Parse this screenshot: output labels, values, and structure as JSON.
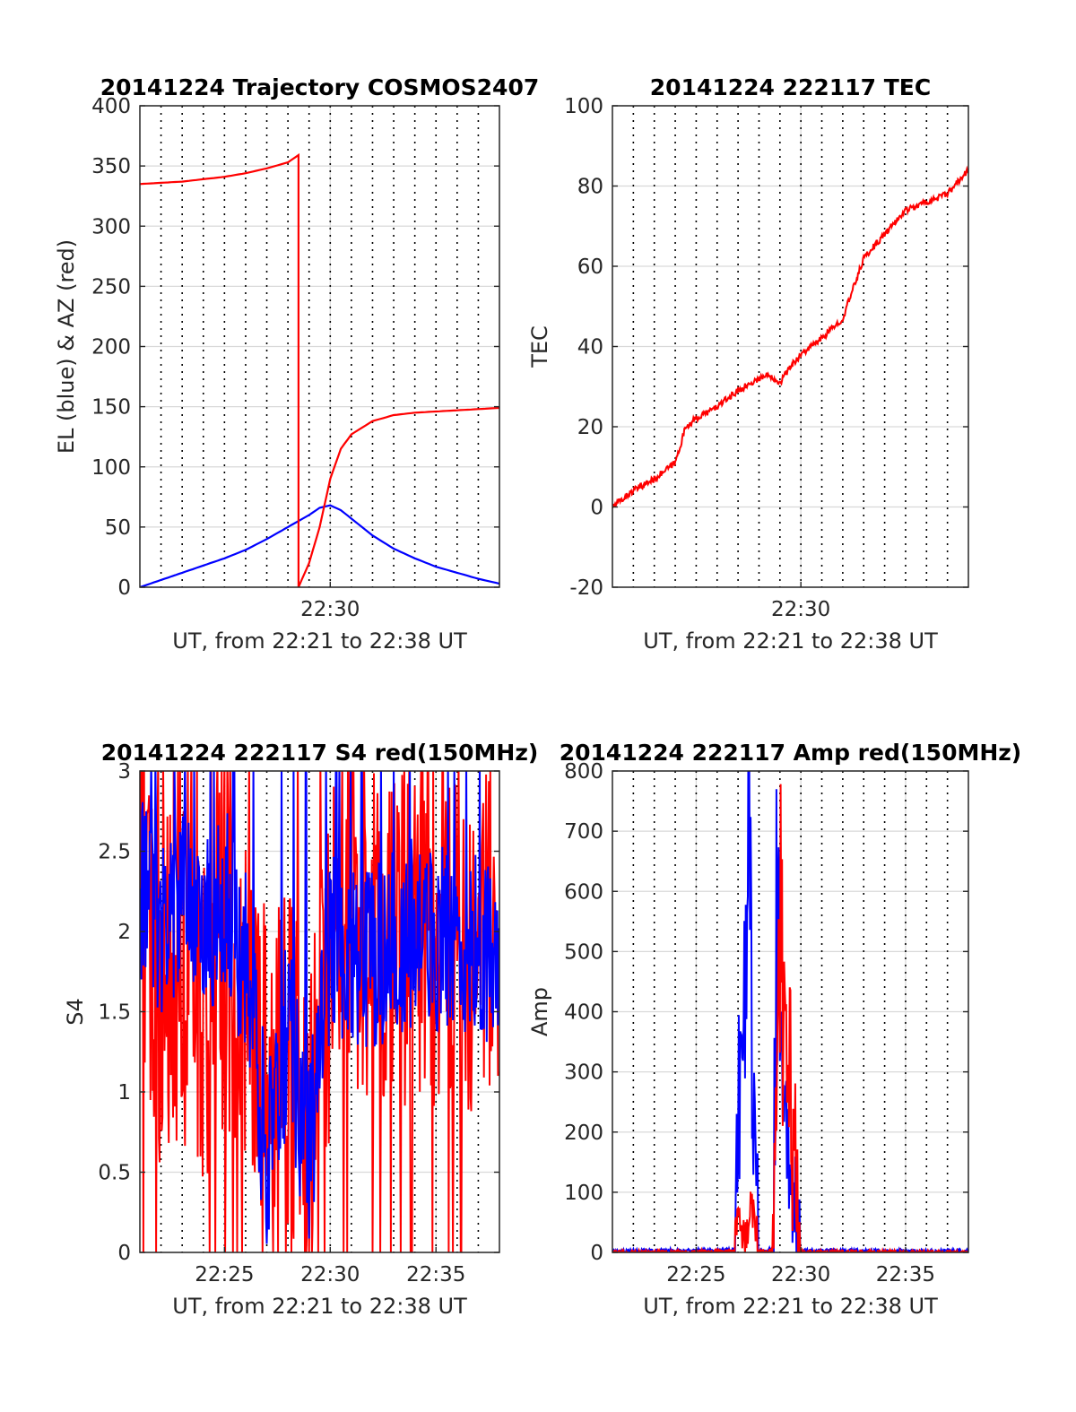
{
  "colors": {
    "blue_series": "#0000ff",
    "red_series": "#ff0000",
    "axes": "#262626",
    "grid": "#d9d9d9"
  },
  "chart_data": [
    {
      "type": "line",
      "title": "20141224 Trajectory COSMOS2407",
      "xlabel": "UT, from 22:21 to 22:38 UT",
      "ylabel": "EL (blue) & AZ (red)",
      "xlim": [
        "22:21",
        "22:38"
      ],
      "ylim": [
        0,
        400
      ],
      "yticks": [
        0,
        50,
        100,
        150,
        200,
        250,
        300,
        350,
        400
      ],
      "xticks": [
        "22:30"
      ],
      "grid": true,
      "series": [
        {
          "color": "blue",
          "x": [
            "22:21",
            "22:22",
            "22:23",
            "22:24",
            "22:25",
            "22:26",
            "22:27",
            "22:28",
            "22:29",
            "22:29:30",
            "22:30",
            "22:30:30",
            "22:31",
            "22:32",
            "22:33",
            "22:34",
            "22:35",
            "22:36",
            "22:37",
            "22:38"
          ],
          "values": [
            0,
            6,
            12,
            18,
            24,
            31,
            40,
            50,
            60,
            66,
            68,
            64,
            57,
            43,
            32,
            24,
            17,
            12,
            7,
            3
          ]
        },
        {
          "color": "red",
          "x": [
            "22:21",
            "22:22",
            "22:23",
            "22:24",
            "22:25",
            "22:26",
            "22:27",
            "22:28",
            "22:28:30",
            "22:28:30",
            "22:29",
            "22:29:30",
            "22:30",
            "22:30:30",
            "22:31",
            "22:32",
            "22:33",
            "22:34",
            "22:35",
            "22:36",
            "22:37",
            "22:38"
          ],
          "values": [
            335,
            336,
            337,
            339,
            341,
            344,
            348,
            353,
            359,
            0,
            20,
            50,
            90,
            115,
            127,
            138,
            143,
            145,
            146,
            147,
            148,
            149
          ]
        }
      ]
    },
    {
      "type": "line",
      "title": "20141224 222117 TEC",
      "xlabel": "UT, from 22:21 to 22:38 UT",
      "ylabel": "TEC",
      "xlim": [
        "22:21",
        "22:38"
      ],
      "ylim": [
        -20,
        100
      ],
      "yticks": [
        -20,
        0,
        20,
        40,
        60,
        80,
        100
      ],
      "xticks": [
        "22:30"
      ],
      "grid": true,
      "series": [
        {
          "color": "red",
          "x": [
            "22:21",
            "22:22",
            "22:23",
            "22:24",
            "22:24:30",
            "22:25",
            "22:26",
            "22:27",
            "22:28",
            "22:28:30",
            "22:29",
            "22:29:30",
            "22:30",
            "22:31",
            "22:32",
            "22:33",
            "22:34",
            "22:35",
            "22:36",
            "22:37",
            "22:38"
          ],
          "values": [
            0,
            4,
            7,
            11,
            20,
            22,
            25,
            29,
            32,
            33,
            31,
            35,
            38,
            42,
            47,
            62,
            68,
            74,
            76,
            78,
            84
          ]
        }
      ]
    },
    {
      "type": "line",
      "title": "20141224 222117 S4 red(150MHz)",
      "xlabel": "UT, from 22:21 to 22:38 UT",
      "ylabel": "S4",
      "xlim": [
        "22:21",
        "22:38"
      ],
      "ylim": [
        0,
        3
      ],
      "yticks": [
        0,
        0.5,
        1,
        1.5,
        2,
        2.5,
        3
      ],
      "xticks": [
        "22:25",
        "22:30",
        "22:35"
      ],
      "grid": true,
      "series": [
        {
          "color": "red",
          "x": [
            "22:21",
            "22:22",
            "22:23",
            "22:24",
            "22:25",
            "22:26",
            "22:27",
            "22:28",
            "22:29",
            "22:30",
            "22:31",
            "22:32",
            "22:33",
            "22:34",
            "22:35",
            "22:36",
            "22:37",
            "22:38"
          ],
          "values": [
            2.4,
            1.6,
            1.8,
            1.5,
            1.9,
            1.6,
            1.1,
            1.2,
            0.9,
            1.8,
            2.1,
            2.0,
            1.9,
            2.1,
            2.0,
            1.9,
            2.0,
            2.0
          ]
        },
        {
          "color": "blue",
          "x": [
            "22:21",
            "22:22",
            "22:23",
            "22:24",
            "22:25",
            "22:26",
            "22:27",
            "22:28",
            "22:29",
            "22:30",
            "22:31",
            "22:32",
            "22:33",
            "22:34",
            "22:35",
            "22:36",
            "22:37",
            "22:38"
          ],
          "values": [
            2.3,
            2.0,
            2.2,
            2.0,
            2.2,
            1.8,
            0.6,
            1.4,
            0.6,
            1.9,
            1.9,
            1.8,
            1.9,
            2.0,
            1.9,
            2.0,
            1.9,
            1.8
          ]
        }
      ]
    },
    {
      "type": "line",
      "title": "20141224 222117 Amp red(150MHz)",
      "xlabel": "UT, from 22:21 to 22:38 UT",
      "ylabel": "Amp",
      "xlim": [
        "22:21",
        "22:38"
      ],
      "ylim": [
        0,
        800
      ],
      "yticks": [
        0,
        100,
        200,
        300,
        400,
        500,
        600,
        700,
        800
      ],
      "xticks": [
        "22:25",
        "22:30",
        "22:35"
      ],
      "grid": true,
      "series": [
        {
          "color": "blue",
          "x": [
            "22:21",
            "22:26:50",
            "22:27",
            "22:27:10",
            "22:27:20",
            "22:27:30",
            "22:27:40",
            "22:28",
            "22:28:40",
            "22:28:50",
            "22:29",
            "22:29:10",
            "22:30",
            "22:38"
          ],
          "values": [
            2,
            5,
            220,
            410,
            380,
            660,
            300,
            5,
            5,
            545,
            440,
            235,
            3,
            2
          ]
        },
        {
          "color": "red",
          "x": [
            "22:21",
            "22:26:50",
            "22:27",
            "22:27:20",
            "22:27:40",
            "22:28",
            "22:28:40",
            "22:28:50",
            "22:29",
            "22:29:10",
            "22:30",
            "22:38"
          ],
          "values": [
            0,
            2,
            80,
            10,
            80,
            2,
            2,
            300,
            565,
            420,
            1,
            0
          ]
        }
      ]
    }
  ]
}
